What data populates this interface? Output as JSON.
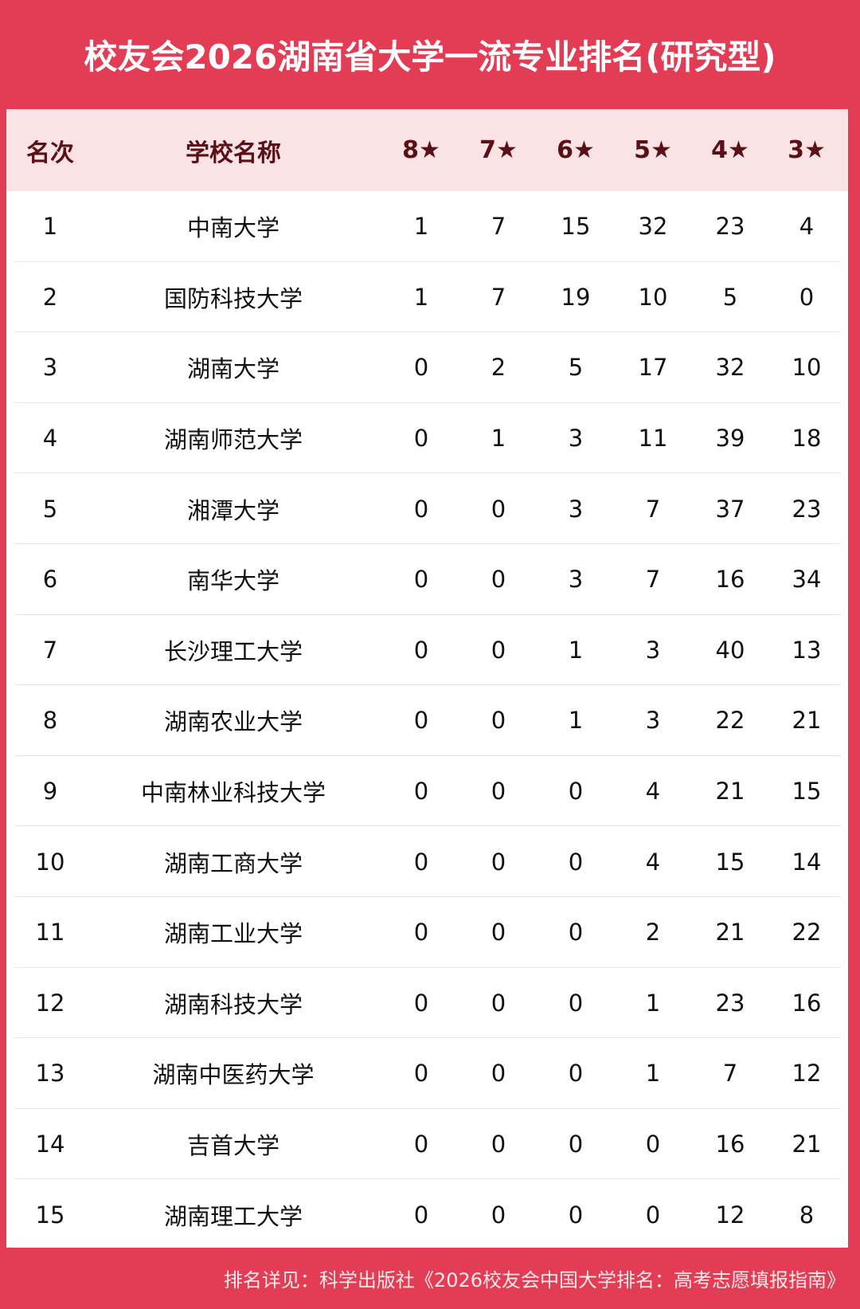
{
  "title": "校友会2026湖南省大学一流专业排名(研究型)",
  "columns": [
    "名次",
    "学校名称",
    "8★",
    "7★",
    "6★",
    "5★",
    "4★",
    "3★"
  ],
  "rows": [
    [
      "1",
      "中南大学",
      "1",
      "7",
      "15",
      "32",
      "23",
      "4"
    ],
    [
      "2",
      "国防科技大学",
      "1",
      "7",
      "19",
      "10",
      "5",
      "0"
    ],
    [
      "3",
      "湖南大学",
      "0",
      "2",
      "5",
      "17",
      "32",
      "10"
    ],
    [
      "4",
      "湖南师范大学",
      "0",
      "1",
      "3",
      "11",
      "39",
      "18"
    ],
    [
      "5",
      "湘潭大学",
      "0",
      "0",
      "3",
      "7",
      "37",
      "23"
    ],
    [
      "6",
      "南华大学",
      "0",
      "0",
      "3",
      "7",
      "16",
      "34"
    ],
    [
      "7",
      "长沙理工大学",
      "0",
      "0",
      "1",
      "3",
      "40",
      "13"
    ],
    [
      "8",
      "湖南农业大学",
      "0",
      "0",
      "1",
      "3",
      "22",
      "21"
    ],
    [
      "9",
      "中南林业科技大学",
      "0",
      "0",
      "0",
      "4",
      "21",
      "15"
    ],
    [
      "10",
      "湖南工商大学",
      "0",
      "0",
      "0",
      "4",
      "15",
      "14"
    ],
    [
      "11",
      "湖南工业大学",
      "0",
      "0",
      "0",
      "2",
      "21",
      "22"
    ],
    [
      "12",
      "湖南科技大学",
      "0",
      "0",
      "0",
      "1",
      "23",
      "16"
    ],
    [
      "13",
      "湖南中医药大学",
      "0",
      "0",
      "0",
      "1",
      "7",
      "12"
    ],
    [
      "14",
      "吉首大学",
      "0",
      "0",
      "0",
      "0",
      "16",
      "21"
    ],
    [
      "15",
      "湖南理工大学",
      "0",
      "0",
      "0",
      "0",
      "12",
      "8"
    ]
  ],
  "footer": "排名详见：科学出版社《2026校友会中国大学排名：高考志愿填报指南》",
  "colors": {
    "brand_red": "#e33d56",
    "header_bg": "#fae3e5",
    "header_text": "#5a1016"
  }
}
